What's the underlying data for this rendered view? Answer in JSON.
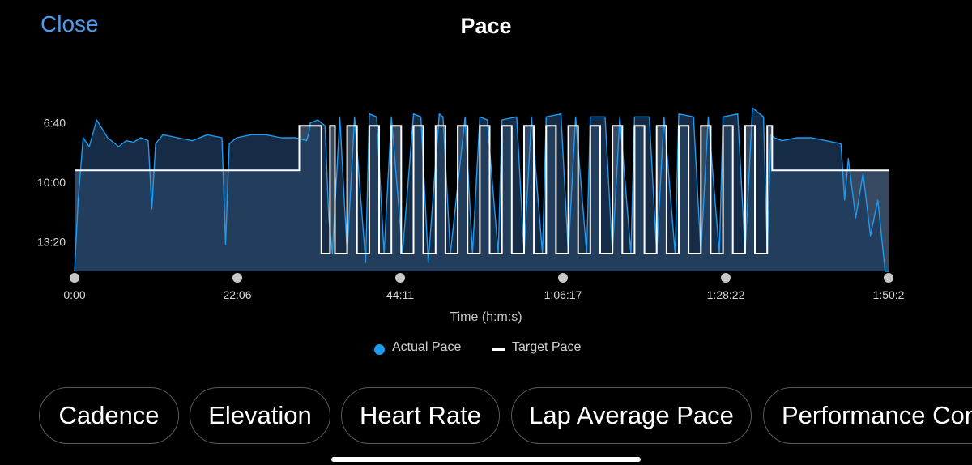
{
  "header": {
    "close_label": "Close",
    "title": "Pace"
  },
  "chart_data": {
    "type": "line",
    "title": "Pace",
    "xlabel": "Time (h:m:s)",
    "ylabel": "",
    "y_ticks": [
      "6:40",
      "10:00",
      "13:20"
    ],
    "y_inverted": true,
    "y_range": [
      "5:00",
      "15:00"
    ],
    "x_ticks": [
      "0:00",
      "22:06",
      "44:11",
      "1:06:17",
      "1:28:22",
      "1:50:2"
    ],
    "x_range": [
      "0:00",
      "1:50:28"
    ],
    "series": [
      {
        "name": "Actual Pace",
        "color": "#1d9bf0",
        "x": [
          "0:00",
          "0:30",
          "1:10",
          "2:00",
          "3:00",
          "4:30",
          "6:00",
          "7:00",
          "8:00",
          "9:00",
          "10:00",
          "10:30",
          "11:00",
          "12:00",
          "14:00",
          "16:00",
          "18:00",
          "20:00",
          "20:30",
          "21:00",
          "22:00",
          "24:00",
          "26:00",
          "28:00",
          "30:00",
          "31:30",
          "31:50",
          "32:00",
          "33:00",
          "34:00",
          "34:30",
          "35:00",
          "36:00",
          "37:00",
          "38:00",
          "39:30",
          "40:00",
          "41:00",
          "42:00",
          "43:00",
          "44:30",
          "46:00",
          "47:00",
          "48:00",
          "49:30",
          "50:00",
          "51:00",
          "53:00",
          "54:00",
          "55:00",
          "56:00",
          "57:30",
          "58:00",
          "60:00",
          "61:00",
          "62:00",
          "63:30",
          "64:00",
          "66:00",
          "67:00",
          "68:00",
          "69:30",
          "70:00",
          "72:00",
          "73:00",
          "74:00",
          "75:30",
          "76:00",
          "78:00",
          "79:00",
          "80:00",
          "81:30",
          "82:00",
          "84:00",
          "85:00",
          "86:00",
          "87:30",
          "88:00",
          "90:00",
          "91:00",
          "92:00",
          "93:30",
          "94:00",
          "94:30",
          "95:00",
          "96:00",
          "98:00",
          "100:00",
          "102:00",
          "104:00",
          "104:30",
          "105:00",
          "106:00",
          "107:00",
          "108:00",
          "109:00",
          "110:00",
          "110:28"
        ],
        "y": [
          "15:00",
          "11:00",
          "7:30",
          "8:00",
          "6:30",
          "7:30",
          "8:00",
          "7:40",
          "7:45",
          "7:30",
          "7:40",
          "11:30",
          "7:50",
          "7:20",
          "7:30",
          "7:40",
          "7:20",
          "7:30",
          "13:30",
          "7:50",
          "7:30",
          "7:20",
          "7:20",
          "7:30",
          "7:30",
          "7:40",
          "7:10",
          "6:40",
          "6:30",
          "6:50",
          "12:00",
          "14:00",
          "6:20",
          "14:00",
          "6:20",
          "14:30",
          "6:10",
          "6:20",
          "14:00",
          "6:20",
          "14:00",
          "6:10",
          "6:20",
          "14:30",
          "6:10",
          "6:20",
          "14:00",
          "6:20",
          "14:00",
          "6:20",
          "6:30",
          "14:00",
          "6:30",
          "6:20",
          "14:00",
          "6:20",
          "14:00",
          "6:20",
          "6:10",
          "14:00",
          "6:20",
          "14:00",
          "6:20",
          "6:20",
          "14:00",
          "6:20",
          "14:00",
          "6:20",
          "6:20",
          "14:00",
          "6:20",
          "14:00",
          "6:10",
          "6:20",
          "14:00",
          "6:20",
          "14:00",
          "6:20",
          "6:10",
          "14:00",
          "5:50",
          "6:20",
          "14:00",
          "7:20",
          "7:30",
          "7:40",
          "7:30",
          "7:30",
          "7:40",
          "7:50",
          "11:00",
          "8:40",
          "12:00",
          "9:30",
          "13:00",
          "11:00",
          "15:00",
          "15:00"
        ]
      },
      {
        "name": "Target Pace",
        "color": "#ffffff",
        "x": [
          "0:00",
          "30:30",
          "30:30",
          "33:30",
          "33:30",
          "34:40",
          "34:40",
          "35:20",
          "35:20",
          "37:00",
          "37:00",
          "38:20",
          "38:20",
          "40:00",
          "40:00",
          "41:20",
          "41:20",
          "43:00",
          "43:00",
          "44:20",
          "44:20",
          "46:00",
          "46:00",
          "47:20",
          "47:20",
          "49:00",
          "49:00",
          "50:20",
          "50:20",
          "52:00",
          "52:00",
          "53:20",
          "53:20",
          "55:00",
          "55:00",
          "56:20",
          "56:20",
          "58:00",
          "58:00",
          "59:20",
          "59:20",
          "61:00",
          "61:00",
          "62:20",
          "62:20",
          "64:00",
          "64:00",
          "65:20",
          "65:20",
          "67:00",
          "67:00",
          "68:20",
          "68:20",
          "70:00",
          "70:00",
          "71:20",
          "71:20",
          "73:00",
          "73:00",
          "74:20",
          "74:20",
          "76:00",
          "76:00",
          "77:20",
          "77:20",
          "79:00",
          "79:00",
          "80:20",
          "80:20",
          "82:00",
          "82:00",
          "83:20",
          "83:20",
          "85:00",
          "85:00",
          "86:20",
          "86:20",
          "88:00",
          "88:00",
          "89:20",
          "89:20",
          "91:00",
          "91:00",
          "92:20",
          "92:20",
          "94:00",
          "94:00",
          "94:40",
          "94:40",
          "110:28"
        ],
        "y": [
          "9:20",
          "9:20",
          "6:50",
          "6:50",
          "14:00",
          "14:00",
          "6:50",
          "6:50",
          "14:00",
          "14:00",
          "6:50",
          "6:50",
          "14:00",
          "14:00",
          "6:50",
          "6:50",
          "14:00",
          "14:00",
          "6:50",
          "6:50",
          "14:00",
          "14:00",
          "6:50",
          "6:50",
          "14:00",
          "14:00",
          "6:50",
          "6:50",
          "14:00",
          "14:00",
          "6:50",
          "6:50",
          "14:00",
          "14:00",
          "6:50",
          "6:50",
          "14:00",
          "14:00",
          "6:50",
          "6:50",
          "14:00",
          "14:00",
          "6:50",
          "6:50",
          "14:00",
          "14:00",
          "6:50",
          "6:50",
          "14:00",
          "14:00",
          "6:50",
          "6:50",
          "14:00",
          "14:00",
          "6:50",
          "6:50",
          "14:00",
          "14:00",
          "6:50",
          "6:50",
          "14:00",
          "14:00",
          "6:50",
          "6:50",
          "14:00",
          "14:00",
          "6:50",
          "6:50",
          "14:00",
          "14:00",
          "6:50",
          "6:50",
          "14:00",
          "14:00",
          "6:50",
          "6:50",
          "14:00",
          "14:00",
          "6:50",
          "6:50",
          "14:00",
          "14:00",
          "6:50",
          "6:50",
          "14:00",
          "14:00",
          "6:50",
          "6:50",
          "9:20",
          "9:20"
        ]
      }
    ],
    "grid": false,
    "legend_position": "bottom-center"
  },
  "legend": {
    "actual_label": "Actual Pace",
    "target_label": "Target Pace"
  },
  "metric_tabs": [
    "Cadence",
    "Elevation",
    "Heart Rate",
    "Lap Average Pace",
    "Performance Condition"
  ]
}
